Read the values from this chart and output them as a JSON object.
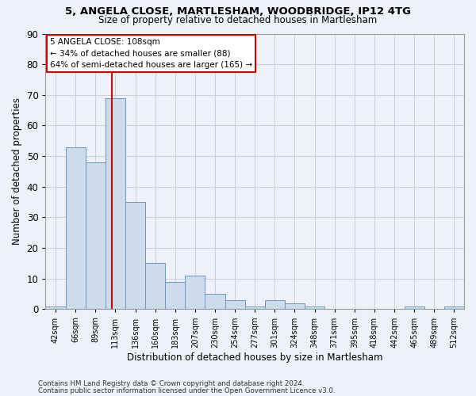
{
  "title1": "5, ANGELA CLOSE, MARTLESHAM, WOODBRIDGE, IP12 4TG",
  "title2": "Size of property relative to detached houses in Martlesham",
  "xlabel": "Distribution of detached houses by size in Martlesham",
  "ylabel": "Number of detached properties",
  "bin_labels": [
    "42sqm",
    "66sqm",
    "89sqm",
    "113sqm",
    "136sqm",
    "160sqm",
    "183sqm",
    "207sqm",
    "230sqm",
    "254sqm",
    "277sqm",
    "301sqm",
    "324sqm",
    "348sqm",
    "371sqm",
    "395sqm",
    "418sqm",
    "442sqm",
    "465sqm",
    "489sqm",
    "512sqm"
  ],
  "bar_values": [
    1,
    53,
    48,
    69,
    35,
    15,
    9,
    11,
    5,
    3,
    1,
    3,
    2,
    1,
    0,
    0,
    0,
    0,
    1,
    0,
    1
  ],
  "bar_color": "#ccdcec",
  "bar_edge_color": "#6699bb",
  "ylim": [
    0,
    90
  ],
  "yticks": [
    0,
    10,
    20,
    30,
    40,
    50,
    60,
    70,
    80,
    90
  ],
  "vline_x_index": 2.81,
  "vline_color": "#cc0000",
  "annotation_line1": "5 ANGELA CLOSE: 108sqm",
  "annotation_line2": "← 34% of detached houses are smaller (88)",
  "annotation_line3": "64% of semi-detached houses are larger (165) →",
  "annotation_box_color": "#ffffff",
  "annotation_box_edge": "#cc0000",
  "footnote1": "Contains HM Land Registry data © Crown copyright and database right 2024.",
  "footnote2": "Contains public sector information licensed under the Open Government Licence v3.0.",
  "bg_color": "#eef2f8",
  "grid_color": "#c8d0dc"
}
